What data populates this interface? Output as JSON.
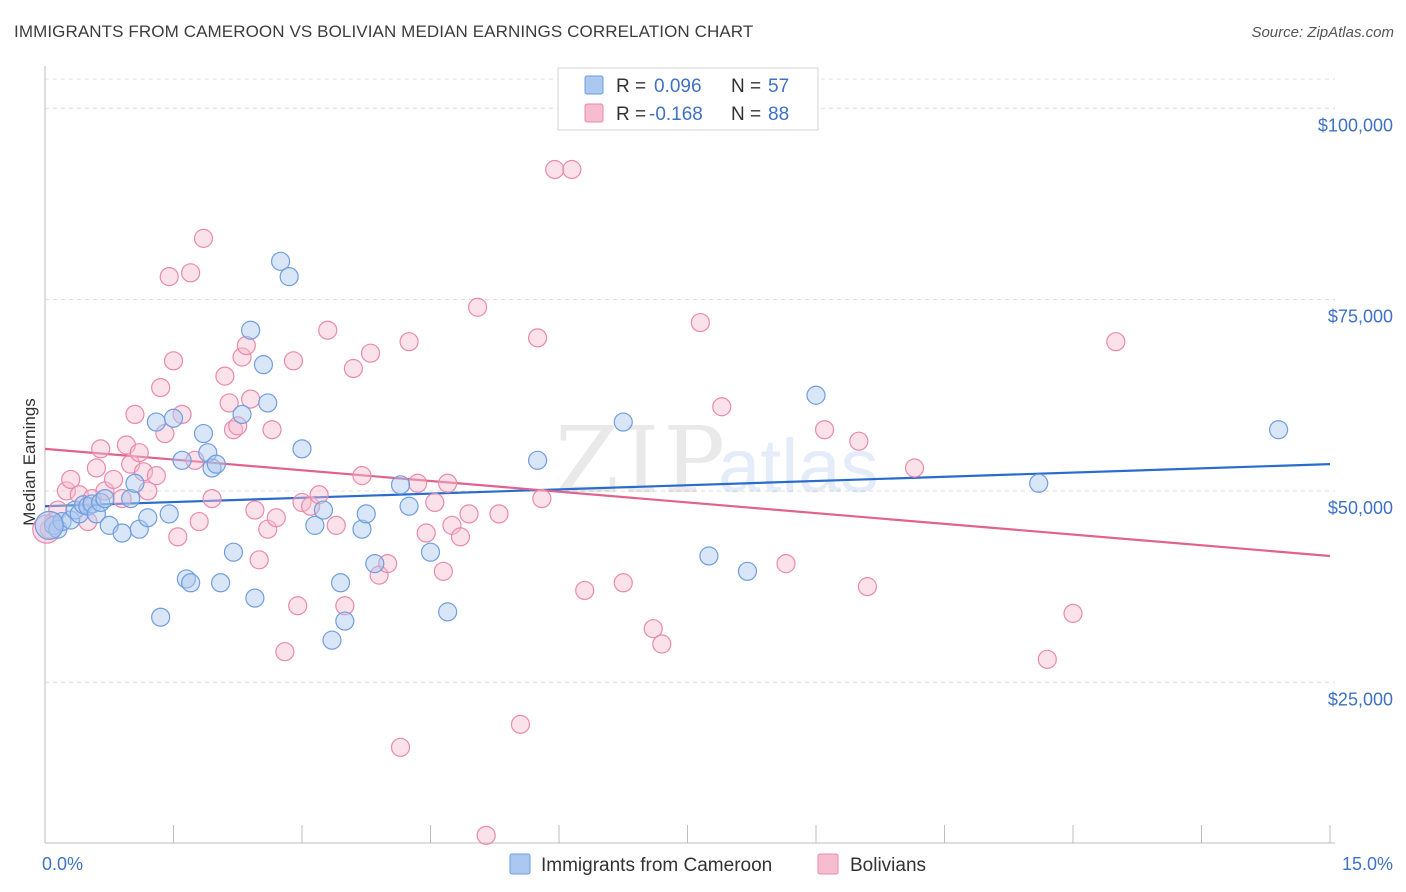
{
  "title": "IMMIGRANTS FROM CAMEROON VS BOLIVIAN MEDIAN EARNINGS CORRELATION CHART",
  "source": "Source: ZipAtlas.com",
  "watermark": {
    "zip": "ZIP",
    "atlas": "atlas"
  },
  "colors": {
    "cameroon": "#6f9ee0",
    "cameroon_fill": "#aac8f0",
    "cameroon_line": "#2a6ccc",
    "bolivians": "#ea8aaa",
    "bolivians_fill": "#f6bcd0",
    "bolivians_line": "#e0628e",
    "axis_label": "#3f72c4",
    "grid": "#dcdcdc"
  },
  "legend": {
    "rows": [
      {
        "r_label": "R = ",
        "r_value": "0.096",
        "n_label": "N = ",
        "n_value": "57"
      },
      {
        "r_label": "R = ",
        "r_value": "-0.168",
        "n_label": "N = ",
        "n_value": "88"
      }
    ],
    "bottom": [
      "Immigrants from Cameroon",
      "Bolivians"
    ]
  },
  "chart_data": {
    "type": "scatter",
    "ylabel": "Median Earnings",
    "x_ticks": [
      "0.0%",
      "15.0%"
    ],
    "y_ticks": [
      "$100,000",
      "$75,000",
      "$50,000",
      "$25,000"
    ],
    "xlim": [
      0,
      15
    ],
    "ylim": [
      4000,
      105000
    ],
    "y_tick_values": [
      100000,
      75000,
      50000,
      25000
    ],
    "series": [
      {
        "name": "Immigrants from Cameroon",
        "r": 0.096,
        "n": 57,
        "trend": [
          [
            0,
            48000
          ],
          [
            15,
            53500
          ]
        ],
        "points": [
          [
            0.1,
            45500
          ],
          [
            0.15,
            45000
          ],
          [
            0.2,
            46000
          ],
          [
            0.3,
            46200
          ],
          [
            0.35,
            47500
          ],
          [
            0.4,
            47000
          ],
          [
            0.45,
            48200
          ],
          [
            0.5,
            48000
          ],
          [
            0.55,
            48300
          ],
          [
            0.6,
            47000
          ],
          [
            0.65,
            48500
          ],
          [
            0.7,
            49000
          ],
          [
            0.75,
            45500
          ],
          [
            0.9,
            44500
          ],
          [
            1.0,
            49000
          ],
          [
            1.05,
            51000
          ],
          [
            1.1,
            45000
          ],
          [
            1.2,
            46500
          ],
          [
            1.3,
            59000
          ],
          [
            1.35,
            33500
          ],
          [
            1.45,
            47000
          ],
          [
            1.5,
            59500
          ],
          [
            1.6,
            54000
          ],
          [
            1.65,
            38500
          ],
          [
            1.7,
            38000
          ],
          [
            1.85,
            57500
          ],
          [
            1.9,
            55000
          ],
          [
            1.95,
            53000
          ],
          [
            2.0,
            53500
          ],
          [
            2.05,
            38000
          ],
          [
            2.2,
            42000
          ],
          [
            2.3,
            60000
          ],
          [
            2.4,
            71000
          ],
          [
            2.45,
            36000
          ],
          [
            2.55,
            66500
          ],
          [
            2.6,
            61500
          ],
          [
            2.75,
            80000
          ],
          [
            2.85,
            78000
          ],
          [
            3.0,
            55500
          ],
          [
            3.15,
            45500
          ],
          [
            3.25,
            47500
          ],
          [
            3.35,
            30500
          ],
          [
            3.45,
            38000
          ],
          [
            3.5,
            33000
          ],
          [
            3.7,
            45000
          ],
          [
            3.75,
            47000
          ],
          [
            3.85,
            40500
          ],
          [
            4.15,
            50800
          ],
          [
            4.25,
            48000
          ],
          [
            4.5,
            42000
          ],
          [
            4.7,
            34200
          ],
          [
            5.75,
            54000
          ],
          [
            6.75,
            59000
          ],
          [
            7.75,
            41500
          ],
          [
            8.2,
            39500
          ],
          [
            9.0,
            62500
          ],
          [
            11.6,
            51000
          ],
          [
            14.4,
            58000
          ]
        ]
      },
      {
        "name": "Bolivians",
        "r": -0.168,
        "n": 88,
        "trend": [
          [
            0,
            55500
          ],
          [
            15,
            41500
          ]
        ],
        "points": [
          [
            0.05,
            45000
          ],
          [
            0.1,
            46000
          ],
          [
            0.15,
            47500
          ],
          [
            0.25,
            50000
          ],
          [
            0.3,
            51500
          ],
          [
            0.4,
            49500
          ],
          [
            0.5,
            46000
          ],
          [
            0.55,
            49000
          ],
          [
            0.6,
            53000
          ],
          [
            0.65,
            55500
          ],
          [
            0.7,
            50000
          ],
          [
            0.8,
            51500
          ],
          [
            0.9,
            49000
          ],
          [
            0.95,
            56000
          ],
          [
            1.0,
            53500
          ],
          [
            1.05,
            60000
          ],
          [
            1.1,
            55000
          ],
          [
            1.15,
            52500
          ],
          [
            1.2,
            50000
          ],
          [
            1.3,
            52000
          ],
          [
            1.35,
            63500
          ],
          [
            1.4,
            57500
          ],
          [
            1.45,
            78000
          ],
          [
            1.5,
            67000
          ],
          [
            1.55,
            44000
          ],
          [
            1.6,
            60000
          ],
          [
            1.7,
            78500
          ],
          [
            1.75,
            54000
          ],
          [
            1.8,
            46000
          ],
          [
            1.85,
            83000
          ],
          [
            1.95,
            49000
          ],
          [
            2.1,
            65000
          ],
          [
            2.15,
            61500
          ],
          [
            2.2,
            58000
          ],
          [
            2.25,
            58500
          ],
          [
            2.3,
            67500
          ],
          [
            2.35,
            69000
          ],
          [
            2.4,
            62000
          ],
          [
            2.45,
            47500
          ],
          [
            2.5,
            41000
          ],
          [
            2.6,
            45000
          ],
          [
            2.65,
            58000
          ],
          [
            2.7,
            46500
          ],
          [
            2.8,
            29000
          ],
          [
            2.9,
            67000
          ],
          [
            2.95,
            35000
          ],
          [
            3.0,
            48500
          ],
          [
            3.1,
            48000
          ],
          [
            3.2,
            49500
          ],
          [
            3.3,
            71000
          ],
          [
            3.4,
            45500
          ],
          [
            3.5,
            35000
          ],
          [
            3.6,
            66000
          ],
          [
            3.7,
            52000
          ],
          [
            3.8,
            68000
          ],
          [
            3.9,
            39000
          ],
          [
            4.0,
            40500
          ],
          [
            4.15,
            16500
          ],
          [
            4.25,
            69500
          ],
          [
            4.35,
            51000
          ],
          [
            4.45,
            44500
          ],
          [
            4.55,
            48500
          ],
          [
            4.65,
            39500
          ],
          [
            4.7,
            51000
          ],
          [
            4.75,
            45500
          ],
          [
            4.85,
            44000
          ],
          [
            4.95,
            47000
          ],
          [
            5.05,
            74000
          ],
          [
            5.15,
            5000
          ],
          [
            5.3,
            47000
          ],
          [
            5.55,
            19500
          ],
          [
            5.75,
            70000
          ],
          [
            5.8,
            49000
          ],
          [
            5.95,
            92000
          ],
          [
            6.15,
            92000
          ],
          [
            6.3,
            37000
          ],
          [
            6.75,
            38000
          ],
          [
            7.1,
            32000
          ],
          [
            7.2,
            30000
          ],
          [
            7.65,
            72000
          ],
          [
            7.9,
            61000
          ],
          [
            8.65,
            40500
          ],
          [
            9.1,
            58000
          ],
          [
            9.5,
            56500
          ],
          [
            9.6,
            37500
          ],
          [
            10.15,
            53000
          ],
          [
            11.7,
            28000
          ],
          [
            12.0,
            34000
          ],
          [
            12.5,
            69500
          ]
        ]
      }
    ]
  }
}
